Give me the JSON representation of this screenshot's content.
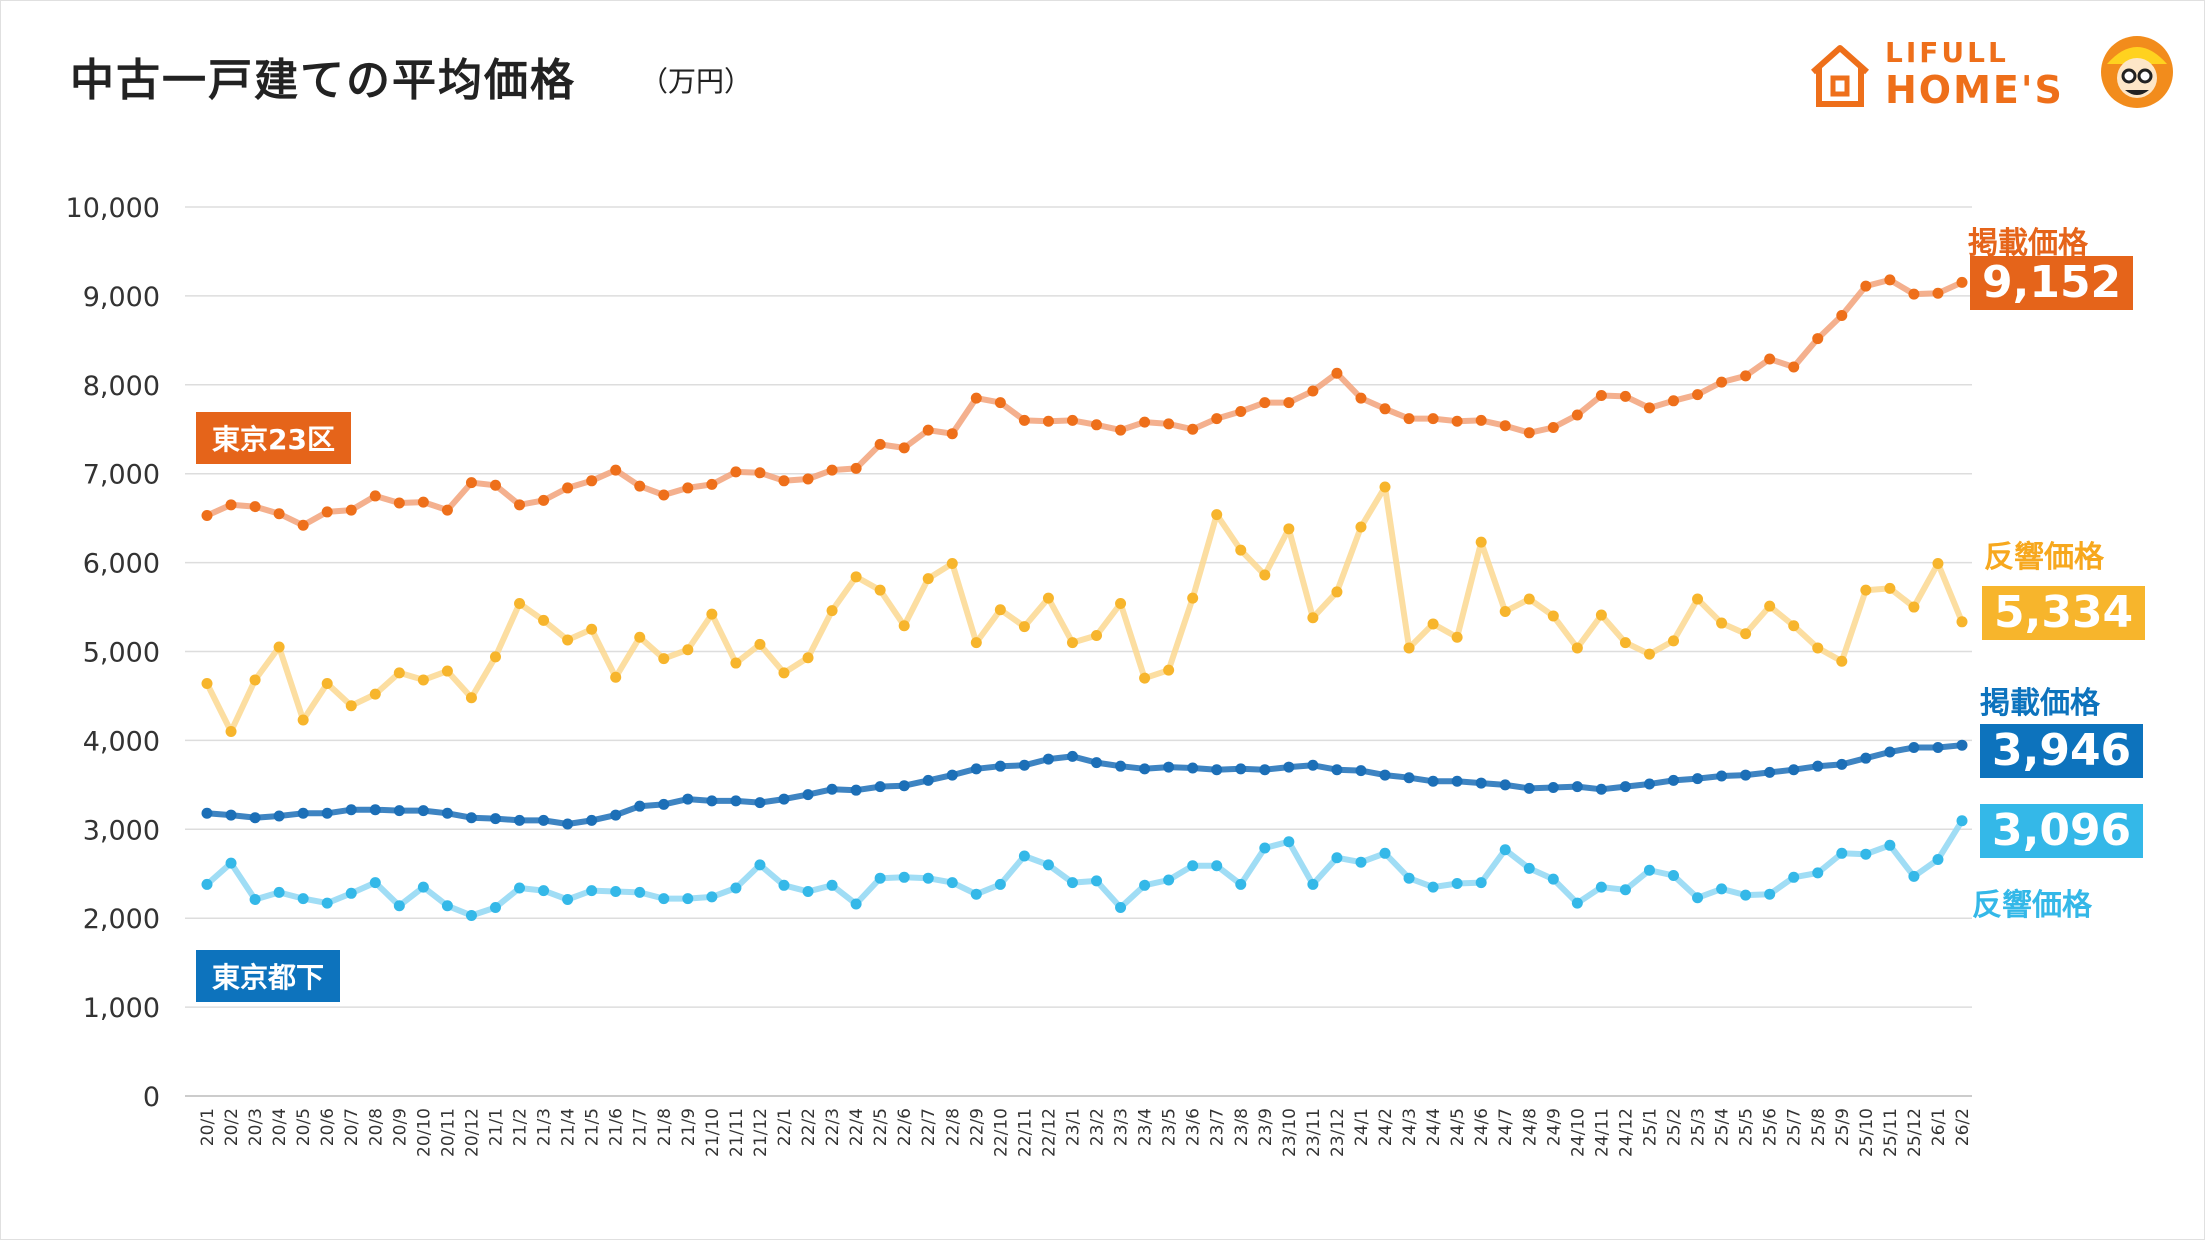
{
  "title": "中古一戸建ての平均価格",
  "subtitle": "（万円）",
  "logo": {
    "line1": "LIFULL",
    "line2": "HOME'S",
    "icon": "house-icon",
    "mascot": "mascot-icon"
  },
  "regions": {
    "tokyo23": "東京23区",
    "tokyo_suburbs": "東京都下"
  },
  "end_labels": {
    "listing_23": {
      "name": "掲載価格",
      "value": "9,152"
    },
    "response_23": {
      "name": "反響価格",
      "value": "5,334"
    },
    "listing_sub": {
      "name": "掲載価格",
      "value": "3,946"
    },
    "response_sub": {
      "name": "反響価格",
      "value": "3,096"
    }
  },
  "colors": {
    "listing_23": "#ee6f1a",
    "listing_23_line": "#f2a27a",
    "response_23": "#f7b52c",
    "response_23_line": "#fbd890",
    "listing_sub": "#1c6fb7",
    "listing_sub_line": "#1c6fb7",
    "response_sub": "#34b8e8",
    "response_sub_line": "#8fd7f3",
    "box_23": "#e5641a",
    "box_sub": "#0d73bd"
  },
  "chart_data": {
    "type": "line",
    "ylim": [
      0,
      10000
    ],
    "yticks": [
      0,
      1000,
      2000,
      3000,
      4000,
      5000,
      6000,
      7000,
      8000,
      9000,
      10000
    ],
    "ytick_labels": [
      "0",
      "1,000",
      "2,000",
      "3,000",
      "4,000",
      "5,000",
      "6,000",
      "7,000",
      "8,000",
      "9,000",
      "10,000"
    ],
    "grid": true,
    "categories": [
      "20/1",
      "20/2",
      "20/3",
      "20/4",
      "20/5",
      "20/6",
      "20/7",
      "20/8",
      "20/9",
      "20/10",
      "20/11",
      "20/12",
      "21/1",
      "21/2",
      "21/3",
      "21/4",
      "21/5",
      "21/6",
      "21/7",
      "21/8",
      "21/9",
      "21/10",
      "21/11",
      "21/12",
      "22/1",
      "22/2",
      "22/3",
      "22/4",
      "22/5",
      "22/6",
      "22/7",
      "22/8",
      "22/9",
      "22/10",
      "22/11",
      "22/12",
      "23/1",
      "23/2",
      "23/3",
      "23/4",
      "23/5",
      "23/6",
      "23/7",
      "23/8",
      "23/9",
      "23/10",
      "23/11",
      "23/12",
      "24/1",
      "24/2",
      "24/3",
      "24/4",
      "24/5",
      "24/6",
      "24/7",
      "24/8",
      "24/9",
      "24/10",
      "24/11",
      "24/12",
      "25/1",
      "25/2",
      "25/3",
      "25/4",
      "25/5",
      "25/6",
      "25/7",
      "25/8",
      "25/9",
      "25/10",
      "25/11",
      "25/12",
      "26/1",
      "26/2"
    ],
    "series": [
      {
        "name": "掲載価格",
        "region": "東京23区",
        "values": [
          6530,
          6650,
          6630,
          6550,
          6420,
          6570,
          6590,
          6750,
          6670,
          6680,
          6590,
          6900,
          6870,
          6650,
          6700,
          6840,
          6920,
          7040,
          6860,
          6760,
          6840,
          6880,
          7020,
          7010,
          6920,
          6940,
          7040,
          7060,
          7330,
          7290,
          7490,
          7450,
          7850,
          7800,
          7600,
          7590,
          7600,
          7550,
          7490,
          7580,
          7560,
          7500,
          7620,
          7700,
          7800,
          7800,
          7930,
          8130,
          7850,
          7730,
          7620,
          7620,
          7590,
          7600,
          7540,
          7460,
          7520,
          7660,
          7880,
          7870,
          7740,
          7820,
          7890,
          8030,
          8100,
          8290,
          8200,
          8520,
          8780,
          9110,
          9180,
          9020,
          9030,
          9152
        ]
      },
      {
        "name": "反響価格",
        "region": "東京23区",
        "values": [
          4640,
          4100,
          4680,
          5050,
          4230,
          4640,
          4390,
          4520,
          4760,
          4680,
          4780,
          4480,
          4940,
          5540,
          5350,
          5130,
          5250,
          4710,
          5160,
          4920,
          5020,
          5420,
          4870,
          5080,
          4760,
          4930,
          5460,
          5840,
          5690,
          5290,
          5820,
          5990,
          5100,
          5470,
          5280,
          5600,
          5100,
          5180,
          5540,
          4700,
          4790,
          5600,
          6540,
          6140,
          5860,
          6380,
          5380,
          5670,
          6400,
          6850,
          5040,
          5310,
          5160,
          6230,
          5450,
          5590,
          5400,
          5040,
          5410,
          5100,
          4970,
          5120,
          5590,
          5320,
          5200,
          5510,
          5290,
          5040,
          4890,
          5690,
          5710,
          5500,
          5990,
          5334
        ]
      },
      {
        "name": "掲載価格",
        "region": "東京都下",
        "values": [
          3180,
          3160,
          3130,
          3150,
          3180,
          3180,
          3220,
          3220,
          3210,
          3210,
          3180,
          3130,
          3120,
          3100,
          3100,
          3060,
          3100,
          3160,
          3260,
          3280,
          3340,
          3320,
          3320,
          3300,
          3340,
          3390,
          3450,
          3440,
          3480,
          3490,
          3550,
          3610,
          3680,
          3710,
          3720,
          3790,
          3820,
          3750,
          3710,
          3680,
          3700,
          3690,
          3670,
          3680,
          3670,
          3700,
          3720,
          3670,
          3660,
          3610,
          3580,
          3540,
          3540,
          3520,
          3500,
          3460,
          3470,
          3480,
          3450,
          3480,
          3510,
          3550,
          3570,
          3600,
          3610,
          3640,
          3670,
          3710,
          3730,
          3800,
          3870,
          3920,
          3920,
          3946
        ]
      },
      {
        "name": "反響価格",
        "region": "東京都下",
        "values": [
          2380,
          2620,
          2210,
          2290,
          2220,
          2170,
          2280,
          2400,
          2140,
          2350,
          2140,
          2030,
          2120,
          2340,
          2310,
          2210,
          2310,
          2300,
          2290,
          2220,
          2220,
          2240,
          2340,
          2600,
          2370,
          2300,
          2370,
          2160,
          2450,
          2460,
          2450,
          2400,
          2270,
          2380,
          2700,
          2600,
          2400,
          2420,
          2120,
          2370,
          2430,
          2590,
          2590,
          2380,
          2790,
          2860,
          2380,
          2680,
          2630,
          2730,
          2450,
          2350,
          2390,
          2400,
          2770,
          2560,
          2440,
          2170,
          2350,
          2320,
          2540,
          2480,
          2230,
          2330,
          2260,
          2270,
          2460,
          2510,
          2730,
          2720,
          2820,
          2470,
          2660,
          3096
        ]
      }
    ]
  }
}
